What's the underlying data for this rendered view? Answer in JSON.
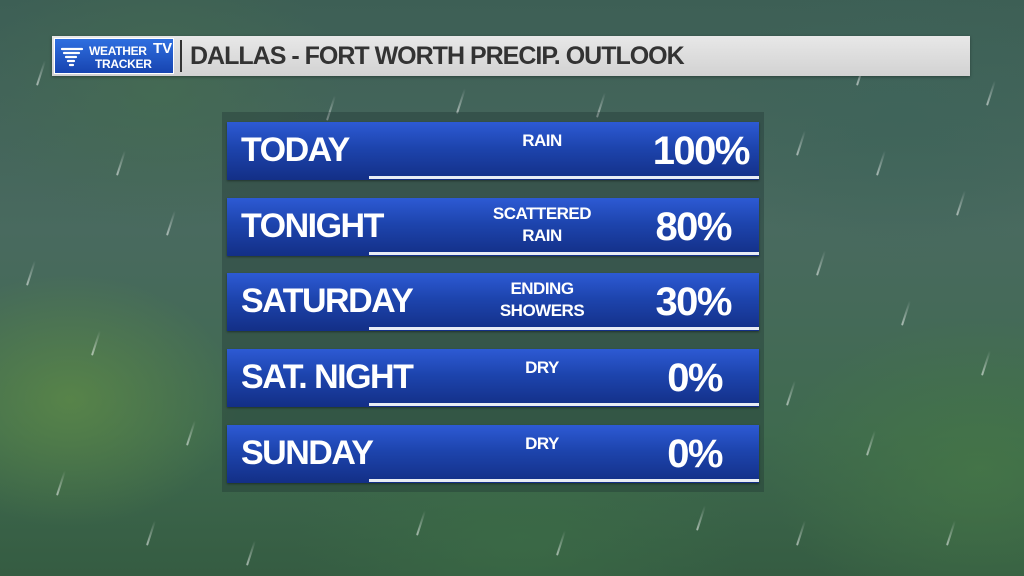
{
  "header": {
    "logo_top": "WEATHER",
    "logo_bottom": "TRACKER",
    "logo_tv": "TV",
    "title": "DALLAS - FORT WORTH PRECIP. OUTLOOK"
  },
  "forecast": [
    {
      "day": "TODAY",
      "condition_line1": "RAIN",
      "condition_line2": "",
      "percent": "100%"
    },
    {
      "day": "TONIGHT",
      "condition_line1": "SCATTERED",
      "condition_line2": "RAIN",
      "percent": "80%"
    },
    {
      "day": "SATURDAY",
      "condition_line1": "ENDING",
      "condition_line2": "SHOWERS",
      "percent": "30%"
    },
    {
      "day": "SAT. NIGHT",
      "condition_line1": "DRY",
      "condition_line2": "",
      "percent": "0%"
    },
    {
      "day": "SUNDAY",
      "condition_line1": "DRY",
      "condition_line2": "",
      "percent": "0%"
    }
  ],
  "colors": {
    "row_blue": "#1d44ad",
    "header_gray": "#d9d9d9",
    "logo_blue": "#2456c8"
  }
}
